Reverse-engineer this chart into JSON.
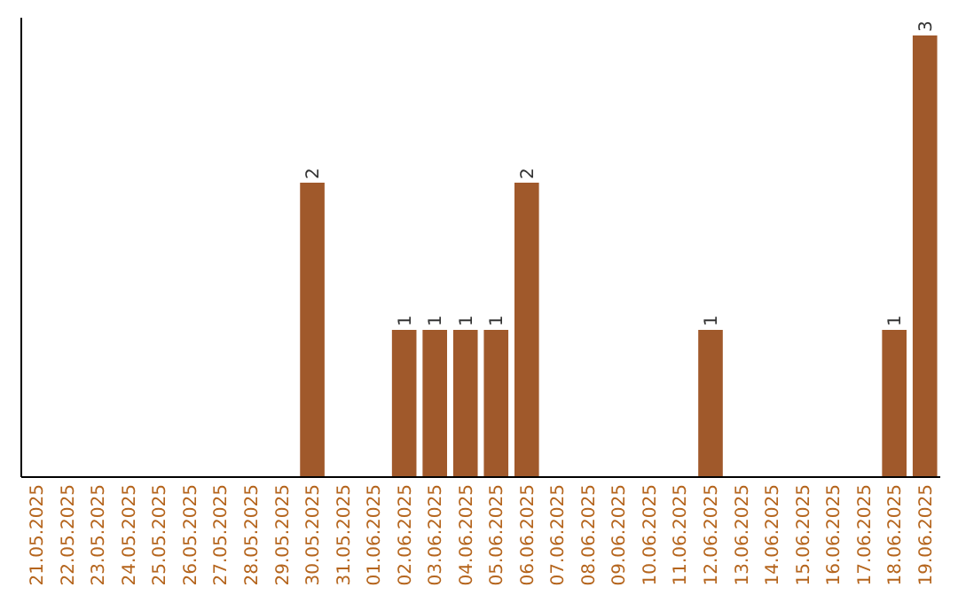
{
  "chart_data": {
    "type": "bar",
    "categories": [
      "21.05.2025",
      "22.05.2025",
      "23.05.2025",
      "24.05.2025",
      "25.05.2025",
      "26.05.2025",
      "27.05.2025",
      "28.05.2025",
      "29.05.2025",
      "30.05.2025",
      "31.05.2025",
      "01.06.2025",
      "02.06.2025",
      "03.06.2025",
      "04.06.2025",
      "05.06.2025",
      "06.06.2025",
      "07.06.2025",
      "08.06.2025",
      "09.06.2025",
      "10.06.2025",
      "11.06.2025",
      "12.06.2025",
      "13.06.2025",
      "14.06.2025",
      "15.06.2025",
      "16.06.2025",
      "17.06.2025",
      "18.06.2025",
      "19.06.2025"
    ],
    "values": [
      0,
      0,
      0,
      0,
      0,
      0,
      0,
      0,
      0,
      2,
      0,
      0,
      1,
      1,
      1,
      1,
      2,
      0,
      0,
      0,
      0,
      0,
      1,
      0,
      0,
      0,
      0,
      0,
      1,
      3
    ],
    "value_labels": [
      null,
      null,
      null,
      null,
      null,
      null,
      null,
      null,
      null,
      "2",
      null,
      null,
      "1",
      "1",
      "1",
      "1",
      "2",
      null,
      null,
      null,
      null,
      null,
      "1",
      null,
      null,
      null,
      null,
      null,
      "1",
      "3"
    ],
    "color": "#a0592b"
  }
}
